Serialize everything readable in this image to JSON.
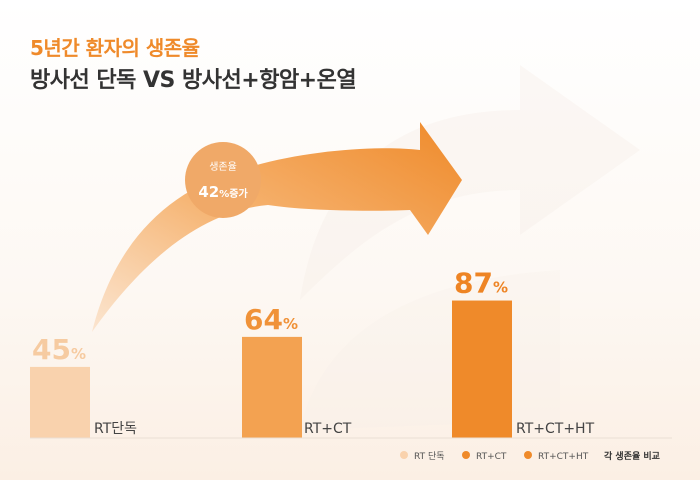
{
  "title": "5년간 환자의 생존율",
  "subtitle": "방사선 단독 VS 방사선+항암+온열",
  "callout": {
    "label": "생존율",
    "value": "42",
    "unit": "%",
    "suffix": "증가"
  },
  "value_unit": "%",
  "legend_note": "각 생존율 비교",
  "colors": {
    "accent": "#ef8a2a",
    "bar_rt": "#f9d2ad",
    "bar_rtct": "#f3a251",
    "bar_rtcthp": "#ef8a2a",
    "label_rt": "#f6cba1",
    "label_rtct": "#f09238",
    "label_rtcthp": "#ee8424",
    "text_dark": "#333333",
    "text_body": "#444444"
  },
  "chart_data": {
    "type": "bar",
    "categories": [
      "RT단독",
      "RT+CT",
      "RT+CT+HT"
    ],
    "values": [
      45,
      64,
      87
    ],
    "legend": [
      "RT 단독",
      "RT+CT",
      "RT+CT+HT"
    ],
    "legend_placement": "bottom-right",
    "grid": false
  }
}
